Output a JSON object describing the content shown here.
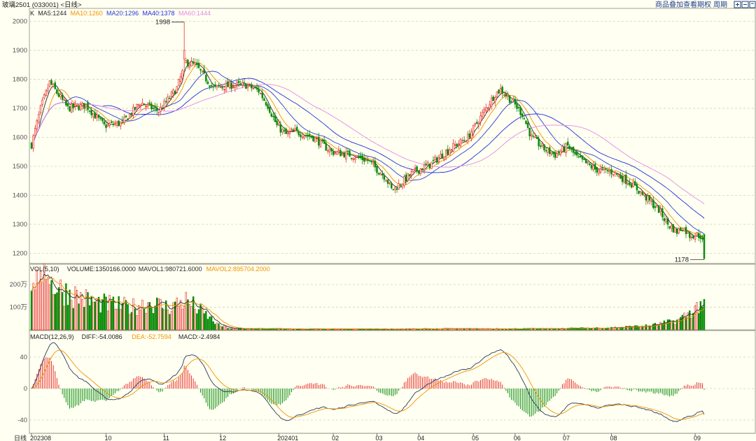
{
  "header": {
    "title": "玻璃2501 (033001) <日线>",
    "links": [
      "商品叠加",
      "查看期权",
      "周期"
    ]
  },
  "colors": {
    "up": "#e8322d",
    "down": "#0a8c0a",
    "ma5": "#2b2b2b",
    "ma10": "#f09400",
    "ma20": "#2b3fd6",
    "ma40": "#1e2ee0",
    "ma60": "#e38be8",
    "grid": "#d2d2bb",
    "axis": "#555555"
  },
  "chart_data": {
    "type": "candlestick",
    "price_panel": {
      "label": "K",
      "legend": [
        {
          "name": "MA5",
          "value": "1244"
        },
        {
          "name": "MA10",
          "value": "1260"
        },
        {
          "name": "MA20",
          "value": "1296"
        },
        {
          "name": "MA40",
          "value": "1378"
        },
        {
          "name": "MA60",
          "value": "1444"
        }
      ],
      "y_ticks": [
        2000,
        1900,
        1800,
        1700,
        1600,
        1500,
        1400,
        1300,
        1200
      ],
      "ylim": [
        1165,
        2040
      ],
      "annotations": [
        {
          "text": "1998",
          "value": 1998
        },
        {
          "text": "1178",
          "value": 1178
        }
      ]
    },
    "volume_panel": {
      "label": "VOL(5,10)",
      "legend": [
        {
          "name": "VOLUME",
          "value": "1350166.0000"
        },
        {
          "name": "MAVOL1",
          "value": "980721.6000"
        },
        {
          "name": "MAVOL2",
          "value": "895704.2000"
        }
      ],
      "y_ticks": [
        "200万",
        "100万"
      ]
    },
    "macd_panel": {
      "label": "MACD(12,26,9)",
      "legend": [
        {
          "name": "DIFF",
          "value": "-54.0086"
        },
        {
          "name": "DEA",
          "value": "-52.7594"
        },
        {
          "name": "MACD",
          "value": "-2.4984"
        }
      ],
      "y_ticks": [
        40,
        0,
        -40
      ]
    },
    "x_axis": {
      "period_label": "日线",
      "ticks": [
        "202308",
        "10",
        "11",
        "12",
        "202401",
        "02",
        "03",
        "04",
        "05",
        "06",
        "07",
        "08",
        "09"
      ]
    },
    "price_anchors": [
      [
        0,
        1575
      ],
      [
        5,
        1700
      ],
      [
        10,
        1790
      ],
      [
        20,
        1700
      ],
      [
        30,
        1710
      ],
      [
        40,
        1640
      ],
      [
        50,
        1650
      ],
      [
        60,
        1720
      ],
      [
        70,
        1690
      ],
      [
        80,
        1770
      ],
      [
        85,
        1860
      ],
      [
        90,
        1850
      ],
      [
        100,
        1770
      ],
      [
        110,
        1780
      ],
      [
        118,
        1780
      ],
      [
        125,
        1760
      ],
      [
        130,
        1710
      ],
      [
        135,
        1640
      ],
      [
        140,
        1610
      ],
      [
        145,
        1620
      ],
      [
        155,
        1600
      ],
      [
        165,
        1550
      ],
      [
        175,
        1540
      ],
      [
        185,
        1520
      ],
      [
        195,
        1460
      ],
      [
        198,
        1420
      ],
      [
        200,
        1425
      ],
      [
        210,
        1480
      ],
      [
        220,
        1510
      ],
      [
        230,
        1560
      ],
      [
        240,
        1600
      ],
      [
        248,
        1680
      ],
      [
        255,
        1750
      ],
      [
        258,
        1765
      ],
      [
        265,
        1720
      ],
      [
        270,
        1680
      ],
      [
        275,
        1600
      ],
      [
        282,
        1560
      ],
      [
        288,
        1540
      ],
      [
        295,
        1570
      ],
      [
        300,
        1530
      ],
      [
        310,
        1490
      ],
      [
        320,
        1480
      ],
      [
        330,
        1440
      ],
      [
        340,
        1380
      ],
      [
        345,
        1350
      ],
      [
        350,
        1300
      ],
      [
        355,
        1275
      ],
      [
        358,
        1290
      ],
      [
        362,
        1262
      ],
      [
        366,
        1265
      ],
      [
        368,
        1260
      ],
      [
        369,
        1240
      ],
      [
        370,
        1185
      ]
    ],
    "volume_anchors": [
      [
        0,
        180
      ],
      [
        4,
        240
      ],
      [
        8,
        230
      ],
      [
        15,
        180
      ],
      [
        25,
        150
      ],
      [
        35,
        120
      ],
      [
        45,
        110
      ],
      [
        55,
        100
      ],
      [
        65,
        120
      ],
      [
        75,
        100
      ],
      [
        85,
        130
      ],
      [
        92,
        90
      ],
      [
        97,
        60
      ],
      [
        103,
        20
      ],
      [
        110,
        6
      ],
      [
        150,
        4
      ],
      [
        200,
        4
      ],
      [
        230,
        5
      ],
      [
        260,
        5
      ],
      [
        290,
        6
      ],
      [
        320,
        10
      ],
      [
        340,
        18
      ],
      [
        355,
        40
      ],
      [
        362,
        75
      ],
      [
        366,
        100
      ],
      [
        370,
        135
      ]
    ]
  }
}
